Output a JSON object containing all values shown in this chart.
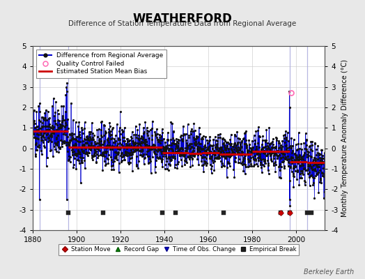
{
  "title": "WEATHERFORD",
  "subtitle": "Difference of Station Temperature Data from Regional Average",
  "ylabel_right": "Monthly Temperature Anomaly Difference (°C)",
  "credit": "Berkeley Earth",
  "xlim": [
    1880,
    2013
  ],
  "ylim": [
    -4,
    5
  ],
  "yticks": [
    -4,
    -3,
    -2,
    -1,
    0,
    1,
    2,
    3,
    4,
    5
  ],
  "xticks": [
    1880,
    1900,
    1920,
    1940,
    1960,
    1980,
    2000
  ],
  "background_color": "#e8e8e8",
  "plot_bg_color": "#ffffff",
  "grid_color": "#cccccc",
  "seed": 42,
  "bias_segments": [
    {
      "x_start": 1880,
      "x_end": 1896,
      "bias": 0.85
    },
    {
      "x_start": 1896,
      "x_end": 1920,
      "bias": 0.05
    },
    {
      "x_start": 1920,
      "x_end": 1939,
      "bias": 0.05
    },
    {
      "x_start": 1939,
      "x_end": 1951,
      "bias": -0.2
    },
    {
      "x_start": 1951,
      "x_end": 1957,
      "bias": -0.25
    },
    {
      "x_start": 1957,
      "x_end": 1965,
      "bias": -0.2
    },
    {
      "x_start": 1965,
      "x_end": 1980,
      "bias": -0.3
    },
    {
      "x_start": 1980,
      "x_end": 1993,
      "bias": -0.15
    },
    {
      "x_start": 1993,
      "x_end": 1997,
      "bias": -0.15
    },
    {
      "x_start": 1997,
      "x_end": 2005,
      "bias": -0.65
    },
    {
      "x_start": 2005,
      "x_end": 2013,
      "bias": -0.7
    }
  ],
  "empirical_break_years": [
    1896,
    1912,
    1939,
    1945,
    1967,
    1993,
    1997,
    2005,
    2007
  ],
  "station_move_years": [
    1993,
    1997
  ],
  "vertical_line_years": [
    1883,
    1896,
    1997,
    2005
  ],
  "qc_fail_year": 1997.5,
  "qc_fail_value": 2.7,
  "main_line_color": "#0000cc",
  "bias_line_color": "#cc0000",
  "qc_marker_color": "#ff69b4",
  "station_move_color": "#cc0000",
  "record_gap_color": "#008800",
  "time_obs_color": "#0000cc",
  "empirical_break_color": "#222222",
  "marker_y": -3.15
}
